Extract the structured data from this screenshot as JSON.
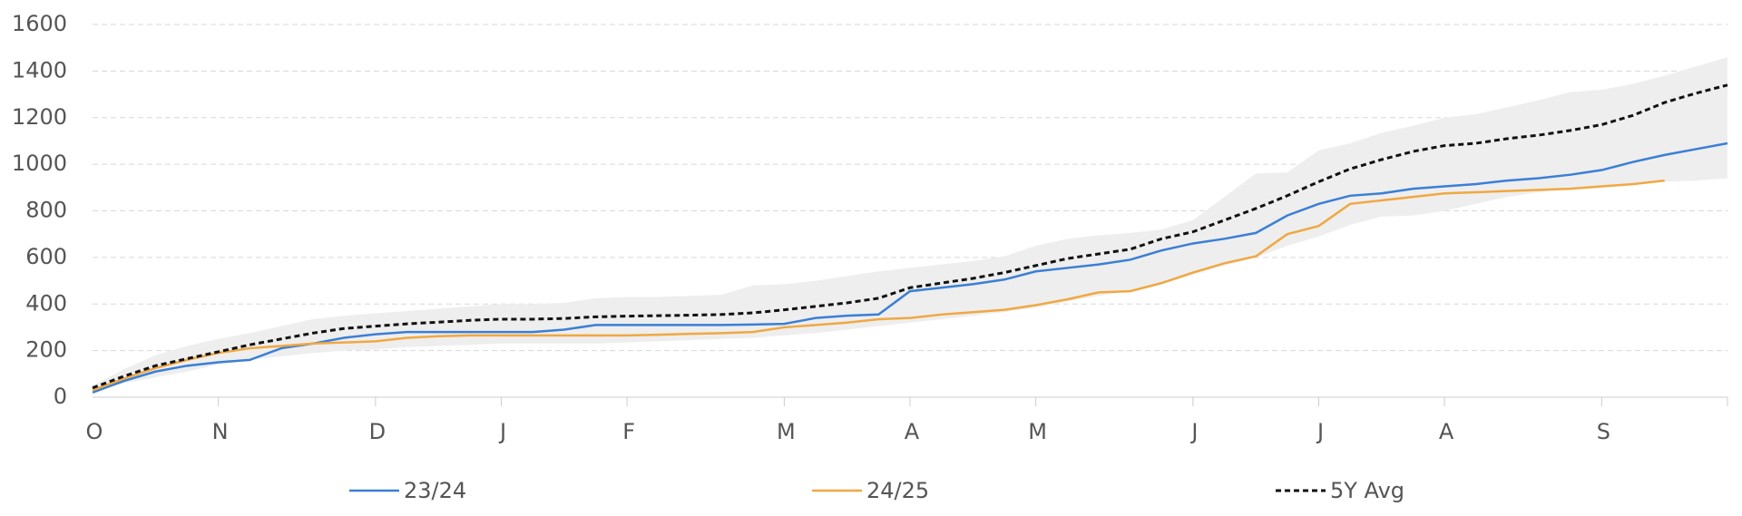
{
  "chart_data": {
    "type": "line",
    "categories": [
      "O",
      null,
      null,
      null,
      "N",
      null,
      null,
      null,
      null,
      "D",
      null,
      null,
      null,
      "J",
      null,
      null,
      null,
      "F",
      null,
      null,
      null,
      null,
      "M",
      null,
      null,
      null,
      "A",
      null,
      null,
      null,
      "M",
      null,
      null,
      null,
      null,
      "J",
      null,
      null,
      null,
      "J",
      null,
      null,
      null,
      "A",
      null,
      null,
      null,
      null,
      "S",
      null,
      null,
      null,
      null
    ],
    "series": [
      {
        "name": "23/24",
        "color": "#3a7fd5",
        "dash": false,
        "values": [
          20,
          70,
          110,
          135,
          150,
          160,
          210,
          230,
          255,
          270,
          280,
          280,
          280,
          280,
          280,
          290,
          310,
          310,
          310,
          310,
          310,
          312,
          315,
          340,
          350,
          355,
          455,
          470,
          485,
          505,
          540,
          555,
          570,
          590,
          630,
          660,
          680,
          705,
          780,
          830,
          865,
          875,
          895,
          905,
          915,
          930,
          940,
          955,
          975,
          1010,
          1040,
          1065,
          1090
        ]
      },
      {
        "name": "24/25",
        "color": "#f0a842",
        "dash": false,
        "values": [
          30,
          80,
          125,
          160,
          190,
          210,
          220,
          230,
          235,
          240,
          255,
          262,
          265,
          265,
          265,
          265,
          265,
          265,
          268,
          272,
          275,
          280,
          300,
          310,
          320,
          335,
          340,
          355,
          365,
          375,
          395,
          420,
          450,
          455,
          490,
          535,
          575,
          605,
          700,
          735,
          830,
          845,
          860,
          875,
          880,
          885,
          890,
          895,
          905,
          915,
          930,
          null,
          null
        ]
      },
      {
        "name": "5Y Avg",
        "color": "#111111",
        "dash": true,
        "values": [
          40,
          90,
          135,
          165,
          195,
          225,
          250,
          275,
          295,
          305,
          315,
          322,
          330,
          335,
          335,
          338,
          345,
          348,
          350,
          352,
          355,
          362,
          375,
          390,
          405,
          425,
          470,
          490,
          510,
          535,
          565,
          595,
          615,
          635,
          680,
          710,
          760,
          810,
          865,
          925,
          980,
          1020,
          1055,
          1080,
          1090,
          1110,
          1125,
          1145,
          1170,
          1210,
          1265,
          1305,
          1340
        ]
      }
    ],
    "band": {
      "color": "#eeeeee",
      "low": [
        25,
        60,
        85,
        110,
        140,
        160,
        175,
        190,
        200,
        205,
        215,
        220,
        225,
        230,
        230,
        230,
        230,
        235,
        240,
        245,
        250,
        255,
        265,
        275,
        290,
        305,
        320,
        335,
        350,
        365,
        385,
        410,
        435,
        455,
        485,
        525,
        565,
        600,
        650,
        690,
        740,
        775,
        780,
        800,
        830,
        860,
        880,
        895,
        905,
        915,
        925,
        930,
        940
      ],
      "high": [
        50,
        120,
        180,
        220,
        250,
        275,
        305,
        335,
        350,
        360,
        370,
        380,
        390,
        400,
        400,
        405,
        425,
        430,
        430,
        435,
        440,
        480,
        485,
        500,
        520,
        540,
        555,
        570,
        585,
        605,
        650,
        680,
        695,
        705,
        720,
        760,
        860,
        960,
        965,
        1060,
        1090,
        1135,
        1165,
        1200,
        1215,
        1245,
        1275,
        1310,
        1320,
        1345,
        1380,
        1420,
        1460
      ]
    },
    "ylim": [
      0,
      1600
    ],
    "yticks": [
      0,
      200,
      400,
      600,
      800,
      1000,
      1200,
      1400,
      1600
    ],
    "grid": true
  }
}
